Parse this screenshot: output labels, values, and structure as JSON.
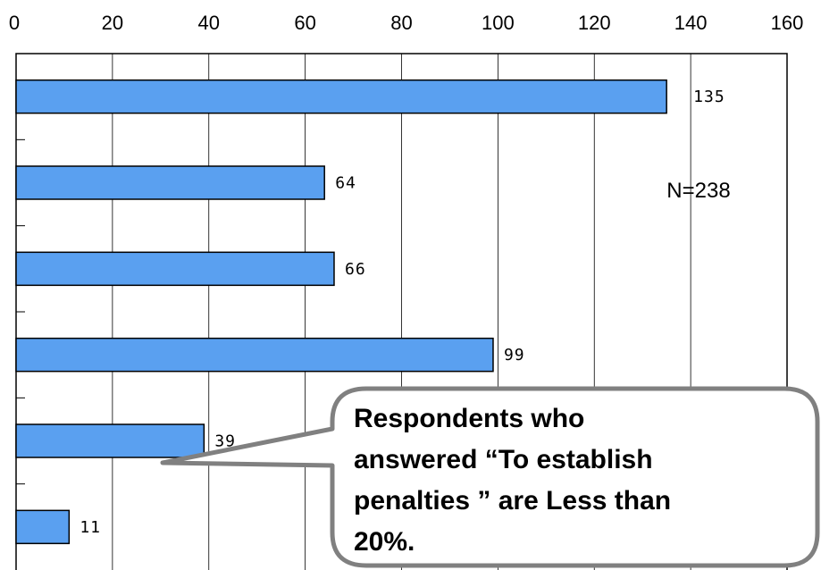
{
  "chart_data": {
    "type": "bar",
    "orientation": "horizontal",
    "values": [
      135,
      64,
      66,
      99,
      39,
      11
    ],
    "value_labels": [
      "135",
      "64",
      "66",
      "99",
      "39",
      "11"
    ],
    "xlim": [
      0,
      160
    ],
    "x_ticks": [
      "0",
      "20",
      "40",
      "60",
      "80",
      "100",
      "120",
      "140",
      "160"
    ],
    "x_axis_position": "top",
    "grid": true,
    "bar_color": "#5aa0f0",
    "legend": "none",
    "annotations": {
      "sample_size": "N=238",
      "callout_lines": [
        "Respondents who",
        "answered “To establish",
        "penalties ” are Less than",
        "20%."
      ]
    }
  }
}
